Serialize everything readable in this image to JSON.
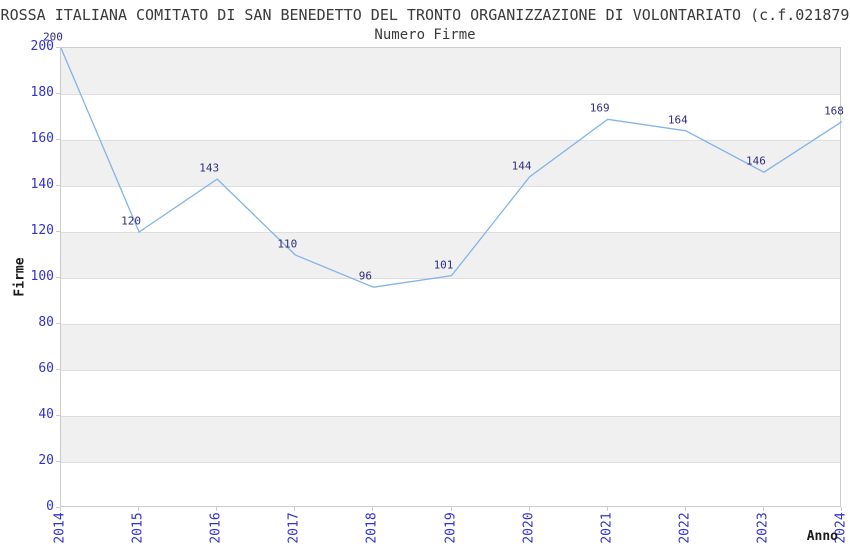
{
  "title": "ROSSA ITALIANA COMITATO DI SAN BENEDETTO DEL TRONTO ORGANIZZAZIONE DI VOLONTARIATO (c.f.021879",
  "chart_data": {
    "type": "line",
    "title": "Numero Firme",
    "xlabel": "Anno",
    "ylabel": "Firme",
    "x": [
      2014,
      2015,
      2016,
      2017,
      2018,
      2019,
      2020,
      2021,
      2022,
      2023,
      2024
    ],
    "values": [
      200,
      120,
      143,
      110,
      96,
      101,
      144,
      169,
      164,
      146,
      168
    ],
    "ylim": [
      0,
      200
    ],
    "ytick_step": 20,
    "grid": true,
    "bands": "alternating horizontal 20-unit bands, gray on odd bands",
    "legend_position": "none",
    "data_labels_shown": true
  },
  "colors": {
    "line": "#82b4e8",
    "tick_label": "#3232cd",
    "data_label": "#2e2e80",
    "band_gray": "#f0f0f0",
    "gridline": "#dedede",
    "plot_border": "#cccccc",
    "text": "#3a3a3a"
  }
}
